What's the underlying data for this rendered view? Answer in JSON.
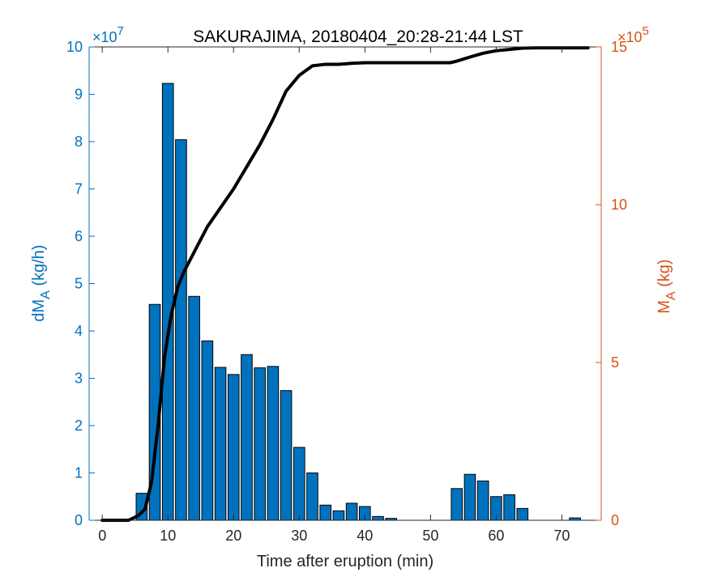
{
  "chart_data": {
    "type": "bar",
    "title": "SAKURAJIMA, 20180404_20:28-21:44 LST",
    "xlabel": "Time after eruption (min)",
    "ylabel_left_main": "dM",
    "ylabel_left_sub": "A",
    "ylabel_left_unit": " (kg/h)",
    "ylabel_right_main": "M",
    "ylabel_right_sub": "A",
    "ylabel_right_unit": " (kg)",
    "left_exponent": "×10",
    "left_exponent_power": "7",
    "right_exponent": "×10",
    "right_exponent_power": "5",
    "xlim": [
      -2,
      76
    ],
    "ylim_left": [
      0,
      10
    ],
    "ylim_right": [
      0,
      15
    ],
    "xticks": [
      "0",
      "10",
      "20",
      "30",
      "40",
      "50",
      "60",
      "70"
    ],
    "yticks_left": [
      "0",
      "1",
      "2",
      "3",
      "4",
      "5",
      "6",
      "7",
      "8",
      "9",
      "10"
    ],
    "yticks_right": [
      "0",
      "5",
      "10",
      "15"
    ],
    "colors": {
      "bar_fill": "#0072BD",
      "bar_edge": "#000000",
      "left_axis": "#0072BD",
      "right_axis": "#D95319",
      "line": "#000000"
    },
    "series": [
      {
        "axis": "left",
        "kind": "bar",
        "x": [
          0,
          2,
          4,
          6,
          8,
          10,
          12,
          14,
          16,
          18,
          20,
          22,
          24,
          26,
          28,
          30,
          32,
          34,
          36,
          38,
          40,
          42,
          44,
          46,
          48,
          50,
          52,
          54,
          56,
          58,
          60,
          62,
          64,
          66,
          68,
          70,
          72
        ],
        "values": [
          0,
          0,
          0,
          0.57,
          4.56,
          9.23,
          8.04,
          4.73,
          3.79,
          3.23,
          3.08,
          3.5,
          3.22,
          3.25,
          2.74,
          1.54,
          1.0,
          0.32,
          0.2,
          0.36,
          0.29,
          0.08,
          0.04,
          0,
          0,
          0,
          0,
          0.67,
          0.97,
          0.83,
          0.5,
          0.54,
          0.25,
          0,
          0,
          0,
          0.05
        ]
      },
      {
        "axis": "right",
        "kind": "line",
        "x": [
          0,
          4,
          5.5,
          6.5,
          7.5,
          8.5,
          9.5,
          10.5,
          11.5,
          12.5,
          14,
          16,
          18,
          20,
          22,
          24,
          26,
          28,
          30,
          32,
          34,
          36,
          38,
          40,
          42,
          44,
          46,
          48,
          50,
          52,
          53,
          54,
          56,
          58,
          60,
          62,
          64,
          66,
          70,
          74
        ],
        "values": [
          0,
          0,
          0.15,
          0.35,
          1.2,
          3.0,
          5.2,
          6.5,
          7.4,
          7.9,
          8.5,
          9.3,
          9.9,
          10.5,
          11.2,
          11.9,
          12.7,
          13.6,
          14.1,
          14.4,
          14.45,
          14.45,
          14.48,
          14.5,
          14.5,
          14.5,
          14.5,
          14.5,
          14.5,
          14.5,
          14.5,
          14.55,
          14.68,
          14.8,
          14.88,
          14.92,
          14.96,
          14.97,
          14.97,
          14.97
        ]
      }
    ]
  }
}
